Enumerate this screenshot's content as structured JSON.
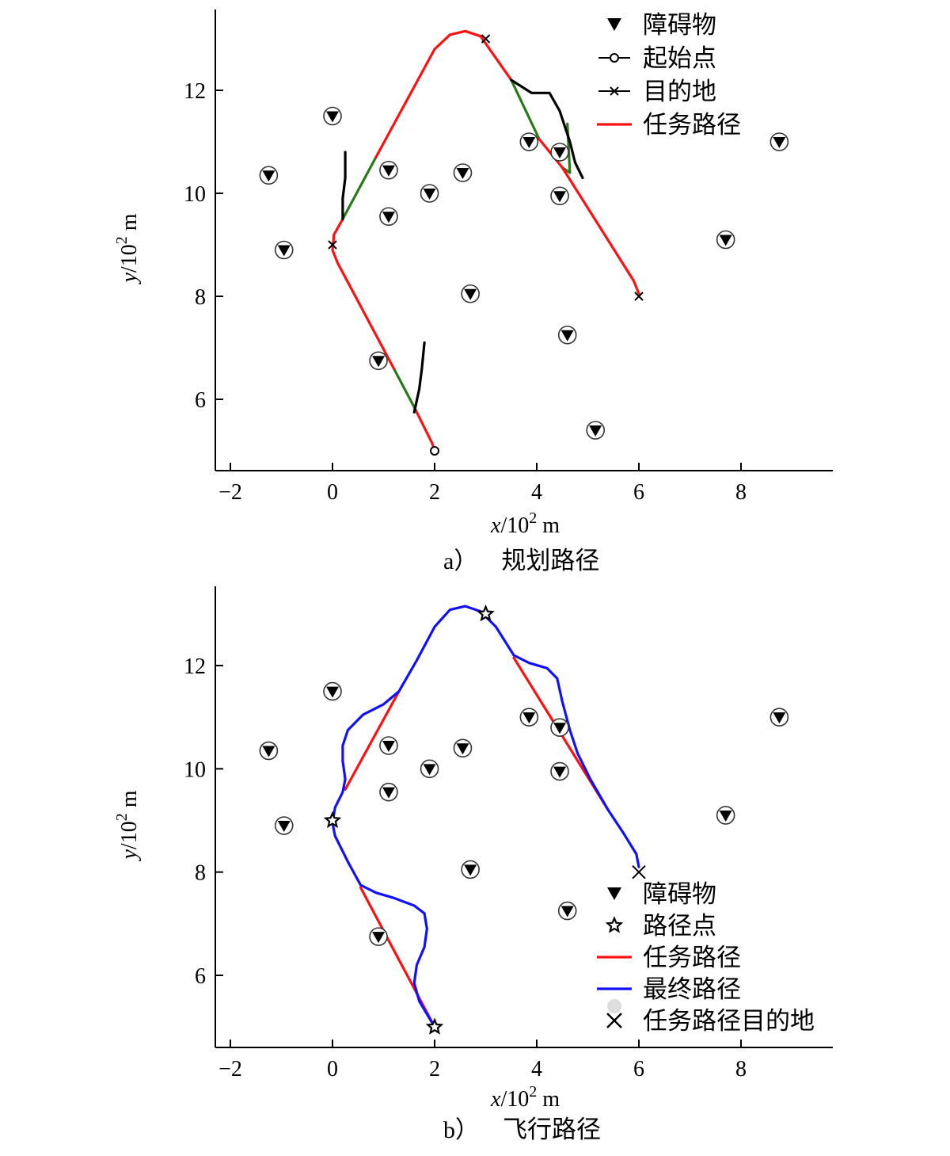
{
  "chart_data": [
    {
      "type": "line",
      "caption_label": "a）",
      "caption_title": "规划路径",
      "xlabel": {
        "var": "x",
        "unit": "/10",
        "exp": "2",
        "m": "m"
      },
      "ylabel": {
        "var": "y",
        "unit": "/10",
        "exp": "2",
        "m": "m"
      },
      "xlim": [
        -2.3,
        9.8
      ],
      "ylim": [
        4.2,
        13.8
      ],
      "xticks": [
        -2,
        0,
        2,
        4,
        6,
        8
      ],
      "yticks": [
        6,
        8,
        10,
        12
      ],
      "legend_position": "top-right",
      "legend": [
        {
          "label": "障碍物",
          "marker": "triangle-down"
        },
        {
          "label": "起始点",
          "marker": "circle-line"
        },
        {
          "label": "目的地",
          "marker": "x-line"
        },
        {
          "label": "任务路径",
          "marker": "line",
          "color": "#ff1010"
        }
      ],
      "obstacles": [
        [
          0.0,
          11.5
        ],
        [
          -1.25,
          10.35
        ],
        [
          1.1,
          10.45
        ],
        [
          1.9,
          10.0
        ],
        [
          2.55,
          10.4
        ],
        [
          1.1,
          9.55
        ],
        [
          -0.95,
          8.9
        ],
        [
          2.7,
          8.05
        ],
        [
          3.85,
          11.0
        ],
        [
          4.45,
          10.8
        ],
        [
          4.45,
          9.95
        ],
        [
          4.6,
          7.25
        ],
        [
          5.15,
          5.4
        ],
        [
          0.9,
          6.75
        ],
        [
          7.7,
          9.1
        ],
        [
          8.75,
          11.0
        ]
      ],
      "start_points": [
        [
          2.0,
          5.0
        ]
      ],
      "destinations": [
        [
          0.0,
          9.0
        ],
        [
          3.0,
          13.0
        ],
        [
          6.0,
          8.0
        ]
      ],
      "series": [
        {
          "color": "#ff1010",
          "points": [
            [
              2.0,
              5.0
            ],
            [
              1.95,
              5.15
            ],
            [
              1.6,
              5.85
            ]
          ]
        },
        {
          "color": "#2a7a1a",
          "points": [
            [
              1.6,
              5.85
            ],
            [
              1.2,
              6.6
            ]
          ]
        },
        {
          "color": "#ff1010",
          "points": [
            [
              1.2,
              6.6
            ],
            [
              0.1,
              8.65
            ],
            [
              0.0,
              8.9
            ],
            [
              0.03,
              9.2
            ],
            [
              0.2,
              9.5
            ]
          ]
        },
        {
          "color": "#2a7a1a",
          "points": [
            [
              0.2,
              9.5
            ],
            [
              0.85,
              10.7
            ]
          ]
        },
        {
          "color": "#ff1010",
          "points": [
            [
              0.85,
              10.7
            ],
            [
              2.0,
              12.8
            ],
            [
              2.3,
              13.08
            ],
            [
              2.6,
              13.15
            ],
            [
              2.9,
              13.05
            ],
            [
              3.5,
              12.2
            ]
          ]
        },
        {
          "color": "#2a7a1a",
          "points": [
            [
              3.5,
              12.2
            ],
            [
              4.05,
              11.05
            ]
          ]
        },
        {
          "color": "#ff1010",
          "points": [
            [
              4.05,
              11.05
            ],
            [
              4.5,
              10.5
            ]
          ]
        },
        {
          "color": "#2a7a1a",
          "points": [
            [
              4.5,
              10.5
            ],
            [
              4.65,
              10.4
            ],
            [
              4.6,
              11.35
            ]
          ]
        },
        {
          "color": "#ff1010",
          "points": [
            [
              4.5,
              10.5
            ],
            [
              5.9,
              8.3
            ],
            [
              6.0,
              8.05
            ]
          ]
        },
        {
          "color": "#000000",
          "points": [
            [
              1.6,
              5.75
            ],
            [
              1.7,
              6.2
            ],
            [
              1.75,
              6.6
            ],
            [
              1.8,
              7.1
            ]
          ]
        },
        {
          "color": "#000000",
          "points": [
            [
              0.2,
              9.5
            ],
            [
              0.2,
              9.9
            ],
            [
              0.25,
              10.3
            ],
            [
              0.25,
              10.8
            ]
          ]
        },
        {
          "color": "#000000",
          "points": [
            [
              3.5,
              12.2
            ],
            [
              3.9,
              11.95
            ],
            [
              4.25,
              11.95
            ],
            [
              4.45,
              11.6
            ],
            [
              4.65,
              11.0
            ],
            [
              4.75,
              10.6
            ],
            [
              4.9,
              10.3
            ]
          ]
        }
      ]
    },
    {
      "type": "line",
      "caption_label": "b）",
      "caption_title": "飞行路径",
      "xlabel": {
        "var": "x",
        "unit": "/10",
        "exp": "2",
        "m": "m"
      },
      "ylabel": {
        "var": "y",
        "unit": "/10",
        "exp": "2",
        "m": "m"
      },
      "xlim": [
        -2.3,
        9.8
      ],
      "ylim": [
        4.2,
        13.8
      ],
      "xticks": [
        -2,
        0,
        2,
        4,
        6,
        8
      ],
      "yticks": [
        6,
        8,
        10,
        12
      ],
      "legend_position": "bottom-right",
      "legend": [
        {
          "label": "障碍物",
          "marker": "triangle-down"
        },
        {
          "label": "路径点",
          "marker": "star"
        },
        {
          "label": "任务路径",
          "marker": "line",
          "color": "#ff1010"
        },
        {
          "label": "最终路径",
          "marker": "line",
          "color": "#1010ff"
        },
        {
          "label": "任务路径目的地",
          "marker": "x-big"
        }
      ],
      "obstacles": [
        [
          0.0,
          11.5
        ],
        [
          -1.25,
          10.35
        ],
        [
          1.1,
          10.45
        ],
        [
          1.9,
          10.0
        ],
        [
          2.55,
          10.4
        ],
        [
          1.1,
          9.55
        ],
        [
          -0.95,
          8.9
        ],
        [
          2.7,
          8.05
        ],
        [
          3.85,
          11.0
        ],
        [
          4.45,
          10.8
        ],
        [
          4.45,
          9.95
        ],
        [
          4.6,
          7.25
        ],
        [
          7.7,
          9.1
        ],
        [
          8.75,
          11.0
        ],
        [
          0.9,
          6.75
        ]
      ],
      "waypoints": [
        [
          2.0,
          5.0
        ],
        [
          0.0,
          9.0
        ],
        [
          3.0,
          13.0
        ]
      ],
      "destinations": [
        [
          6.0,
          8.0
        ]
      ],
      "series": [
        {
          "name": "任务路径",
          "color": "#ff1010",
          "points": [
            [
              2.0,
              5.0
            ],
            [
              0.55,
              7.7
            ]
          ]
        },
        {
          "name": "任务路径",
          "color": "#ff1010",
          "points": [
            [
              0.25,
              9.6
            ],
            [
              1.3,
              11.5
            ]
          ]
        },
        {
          "name": "任务路径",
          "color": "#ff1010",
          "points": [
            [
              3.55,
              12.15
            ],
            [
              5.4,
              9.2
            ]
          ]
        },
        {
          "name": "最终路径",
          "color": "#1010ff",
          "points": [
            [
              2.0,
              5.0
            ],
            [
              1.7,
              5.5
            ],
            [
              1.6,
              5.85
            ],
            [
              1.65,
              6.2
            ],
            [
              1.8,
              6.55
            ],
            [
              1.85,
              6.9
            ],
            [
              1.8,
              7.2
            ],
            [
              1.6,
              7.35
            ],
            [
              1.2,
              7.5
            ],
            [
              0.85,
              7.6
            ],
            [
              0.55,
              7.75
            ],
            [
              0.3,
              8.2
            ],
            [
              0.05,
              8.7
            ],
            [
              0.0,
              8.95
            ],
            [
              0.05,
              9.25
            ],
            [
              0.2,
              9.55
            ],
            [
              0.25,
              9.8
            ],
            [
              0.2,
              10.15
            ],
            [
              0.2,
              10.45
            ],
            [
              0.3,
              10.75
            ],
            [
              0.6,
              11.05
            ],
            [
              1.0,
              11.25
            ],
            [
              1.3,
              11.5
            ],
            [
              1.65,
              12.1
            ],
            [
              2.0,
              12.75
            ],
            [
              2.3,
              13.08
            ],
            [
              2.6,
              13.15
            ],
            [
              2.9,
              13.05
            ],
            [
              3.2,
              12.75
            ],
            [
              3.55,
              12.2
            ],
            [
              3.85,
              12.05
            ],
            [
              4.2,
              11.95
            ],
            [
              4.4,
              11.75
            ],
            [
              4.5,
              11.3
            ],
            [
              4.65,
              10.75
            ],
            [
              4.8,
              10.3
            ],
            [
              5.05,
              9.8
            ],
            [
              5.4,
              9.2
            ],
            [
              5.7,
              8.75
            ],
            [
              5.95,
              8.35
            ],
            [
              6.0,
              8.1
            ]
          ]
        }
      ]
    }
  ]
}
